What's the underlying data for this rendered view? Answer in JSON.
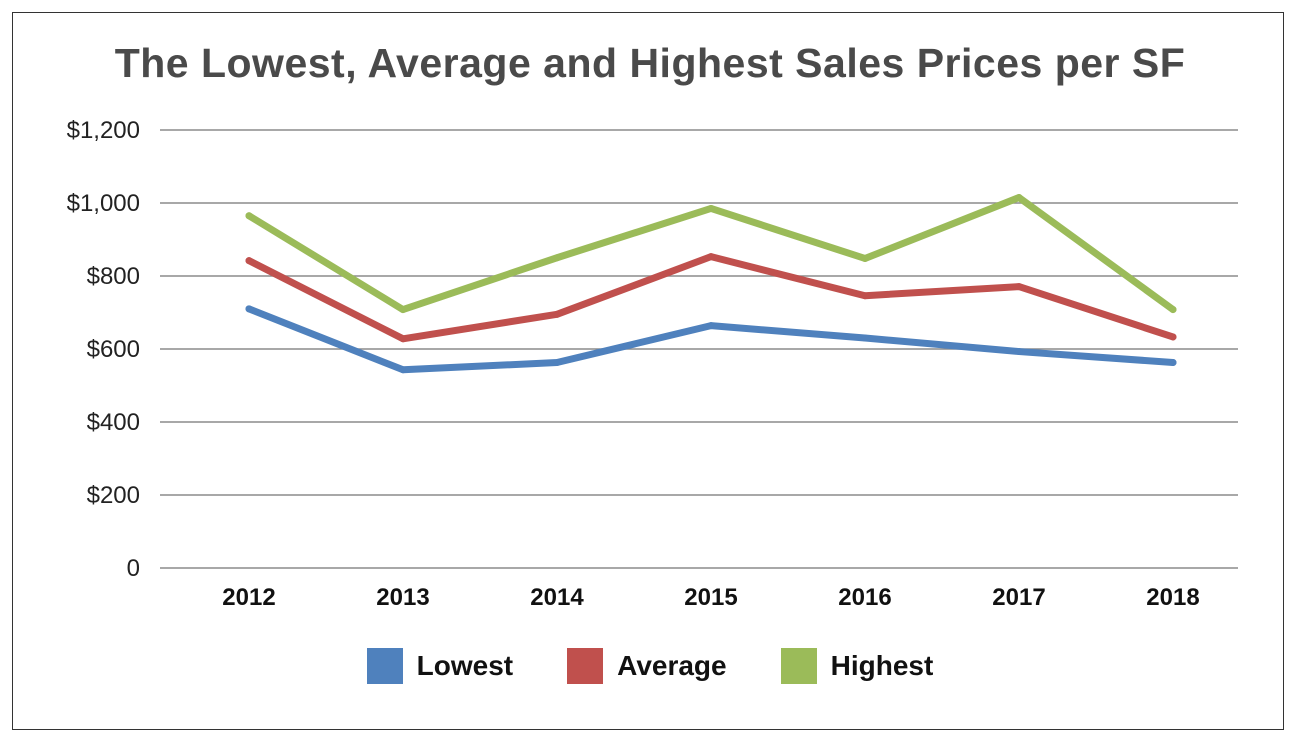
{
  "chart_data": {
    "type": "line",
    "title": "The Lowest, Average and Highest Sales Prices per SF",
    "xlabel": "",
    "ylabel": "",
    "categories": [
      "2012",
      "2013",
      "2014",
      "2015",
      "2016",
      "2017",
      "2018"
    ],
    "y_ticks": [
      0,
      200,
      400,
      600,
      800,
      1000,
      1200
    ],
    "y_tick_labels": [
      "0",
      "$200",
      "$400",
      "$600",
      "$800",
      "$1,000",
      "$1,200"
    ],
    "ylim": [
      0,
      1200
    ],
    "grid": true,
    "legend_position": "bottom",
    "series": [
      {
        "name": "Lowest",
        "color": "#4f81bd",
        "values": [
          710,
          543,
          563,
          664,
          630,
          593,
          563
        ]
      },
      {
        "name": "Average",
        "color": "#c0504d",
        "values": [
          842,
          628,
          695,
          853,
          746,
          771,
          633
        ]
      },
      {
        "name": "Highest",
        "color": "#9bbb59",
        "values": [
          965,
          708,
          850,
          985,
          848,
          1015,
          708
        ]
      }
    ]
  }
}
